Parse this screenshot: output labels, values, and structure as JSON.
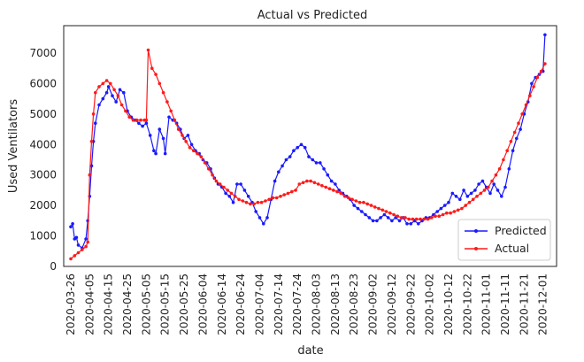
{
  "chart_data": {
    "type": "line",
    "title": "Actual vs Predicted",
    "xlabel": "date",
    "ylabel": "Used Ventilators",
    "ylim": [
      0,
      7900
    ],
    "yticks": [
      0,
      1000,
      2000,
      3000,
      4000,
      5000,
      6000,
      7000
    ],
    "grid": false,
    "legend_position": "lower-right",
    "xticks": [
      "2020-03-26",
      "2020-04-05",
      "2020-04-15",
      "2020-04-25",
      "2020-05-05",
      "2020-05-15",
      "2020-05-25",
      "2020-06-04",
      "2020-06-14",
      "2020-06-24",
      "2020-07-04",
      "2020-07-14",
      "2020-07-24",
      "2020-08-03",
      "2020-08-13",
      "2020-08-23",
      "2020-09-02",
      "2020-09-12",
      "2020-09-22",
      "2020-10-02",
      "2020-10-12",
      "2020-10-22",
      "2020-11-01",
      "2020-11-11",
      "2020-11-21",
      "2020-12-01"
    ],
    "series": [
      {
        "name": "Predicted",
        "color": "#1a1aff",
        "points": [
          [
            "2020-03-26",
            1300
          ],
          [
            "2020-03-27",
            1400
          ],
          [
            "2020-03-28",
            900
          ],
          [
            "2020-03-29",
            950
          ],
          [
            "2020-03-30",
            700
          ],
          [
            "2020-04-01",
            600
          ],
          [
            "2020-04-03",
            900
          ],
          [
            "2020-04-04",
            1500
          ],
          [
            "2020-04-05",
            2300
          ],
          [
            "2020-04-06",
            3300
          ],
          [
            "2020-04-07",
            4100
          ],
          [
            "2020-04-08",
            4700
          ],
          [
            "2020-04-10",
            5300
          ],
          [
            "2020-04-12",
            5500
          ],
          [
            "2020-04-14",
            5700
          ],
          [
            "2020-04-15",
            5900
          ],
          [
            "2020-04-17",
            5600
          ],
          [
            "2020-04-19",
            5400
          ],
          [
            "2020-04-21",
            5800
          ],
          [
            "2020-04-23",
            5700
          ],
          [
            "2020-04-25",
            5100
          ],
          [
            "2020-04-27",
            4900
          ],
          [
            "2020-04-29",
            4800
          ],
          [
            "2020-05-01",
            4700
          ],
          [
            "2020-05-03",
            4600
          ],
          [
            "2020-05-05",
            4700
          ],
          [
            "2020-05-07",
            4300
          ],
          [
            "2020-05-09",
            3800
          ],
          [
            "2020-05-10",
            3700
          ],
          [
            "2020-05-12",
            4500
          ],
          [
            "2020-05-14",
            4200
          ],
          [
            "2020-05-15",
            3700
          ],
          [
            "2020-05-17",
            4900
          ],
          [
            "2020-05-19",
            4800
          ],
          [
            "2020-05-21",
            4700
          ],
          [
            "2020-05-23",
            4500
          ],
          [
            "2020-05-25",
            4200
          ],
          [
            "2020-05-27",
            4300
          ],
          [
            "2020-05-29",
            4000
          ],
          [
            "2020-05-31",
            3800
          ],
          [
            "2020-06-02",
            3700
          ],
          [
            "2020-06-04",
            3500
          ],
          [
            "2020-06-06",
            3400
          ],
          [
            "2020-06-08",
            3200
          ],
          [
            "2020-06-10",
            2900
          ],
          [
            "2020-06-12",
            2700
          ],
          [
            "2020-06-14",
            2600
          ],
          [
            "2020-06-16",
            2400
          ],
          [
            "2020-06-18",
            2300
          ],
          [
            "2020-06-20",
            2100
          ],
          [
            "2020-06-22",
            2700
          ],
          [
            "2020-06-24",
            2700
          ],
          [
            "2020-06-26",
            2500
          ],
          [
            "2020-06-28",
            2300
          ],
          [
            "2020-06-30",
            2100
          ],
          [
            "2020-07-02",
            1800
          ],
          [
            "2020-07-04",
            1600
          ],
          [
            "2020-07-06",
            1400
          ],
          [
            "2020-07-08",
            1600
          ],
          [
            "2020-07-10",
            2200
          ],
          [
            "2020-07-12",
            2800
          ],
          [
            "2020-07-14",
            3100
          ],
          [
            "2020-07-16",
            3300
          ],
          [
            "2020-07-18",
            3500
          ],
          [
            "2020-07-20",
            3600
          ],
          [
            "2020-07-22",
            3800
          ],
          [
            "2020-07-24",
            3900
          ],
          [
            "2020-07-26",
            4000
          ],
          [
            "2020-07-28",
            3900
          ],
          [
            "2020-07-30",
            3600
          ],
          [
            "2020-08-01",
            3500
          ],
          [
            "2020-08-03",
            3400
          ],
          [
            "2020-08-05",
            3400
          ],
          [
            "2020-08-07",
            3200
          ],
          [
            "2020-08-09",
            3000
          ],
          [
            "2020-08-11",
            2800
          ],
          [
            "2020-08-13",
            2700
          ],
          [
            "2020-08-15",
            2500
          ],
          [
            "2020-08-17",
            2400
          ],
          [
            "2020-08-19",
            2300
          ],
          [
            "2020-08-21",
            2200
          ],
          [
            "2020-08-23",
            2000
          ],
          [
            "2020-08-25",
            1900
          ],
          [
            "2020-08-27",
            1800
          ],
          [
            "2020-08-29",
            1700
          ],
          [
            "2020-08-31",
            1600
          ],
          [
            "2020-09-02",
            1500
          ],
          [
            "2020-09-04",
            1500
          ],
          [
            "2020-09-06",
            1600
          ],
          [
            "2020-09-08",
            1700
          ],
          [
            "2020-09-10",
            1600
          ],
          [
            "2020-09-12",
            1500
          ],
          [
            "2020-09-14",
            1600
          ],
          [
            "2020-09-16",
            1500
          ],
          [
            "2020-09-18",
            1600
          ],
          [
            "2020-09-20",
            1400
          ],
          [
            "2020-09-22",
            1400
          ],
          [
            "2020-09-24",
            1500
          ],
          [
            "2020-09-26",
            1400
          ],
          [
            "2020-09-28",
            1500
          ],
          [
            "2020-09-30",
            1600
          ],
          [
            "2020-10-02",
            1600
          ],
          [
            "2020-10-04",
            1700
          ],
          [
            "2020-10-06",
            1800
          ],
          [
            "2020-10-08",
            1900
          ],
          [
            "2020-10-10",
            2000
          ],
          [
            "2020-10-12",
            2100
          ],
          [
            "2020-10-14",
            2400
          ],
          [
            "2020-10-16",
            2300
          ],
          [
            "2020-10-18",
            2200
          ],
          [
            "2020-10-20",
            2500
          ],
          [
            "2020-10-22",
            2300
          ],
          [
            "2020-10-24",
            2400
          ],
          [
            "2020-10-26",
            2500
          ],
          [
            "2020-10-28",
            2700
          ],
          [
            "2020-10-30",
            2800
          ],
          [
            "2020-11-01",
            2600
          ],
          [
            "2020-11-03",
            2400
          ],
          [
            "2020-11-05",
            2700
          ],
          [
            "2020-11-07",
            2500
          ],
          [
            "2020-11-09",
            2300
          ],
          [
            "2020-11-11",
            2600
          ],
          [
            "2020-11-13",
            3200
          ],
          [
            "2020-11-15",
            3800
          ],
          [
            "2020-11-17",
            4200
          ],
          [
            "2020-11-19",
            4500
          ],
          [
            "2020-11-21",
            5000
          ],
          [
            "2020-11-23",
            5400
          ],
          [
            "2020-11-25",
            6000
          ],
          [
            "2020-11-27",
            6200
          ],
          [
            "2020-11-29",
            6300
          ],
          [
            "2020-12-01",
            6400
          ],
          [
            "2020-12-02",
            7600
          ]
        ]
      },
      {
        "name": "Actual",
        "color": "#ff1a1a",
        "points": [
          [
            "2020-03-26",
            250
          ],
          [
            "2020-03-28",
            350
          ],
          [
            "2020-03-30",
            450
          ],
          [
            "2020-04-01",
            550
          ],
          [
            "2020-04-03",
            650
          ],
          [
            "2020-04-04",
            800
          ],
          [
            "2020-04-05",
            3000
          ],
          [
            "2020-04-06",
            4100
          ],
          [
            "2020-04-07",
            5000
          ],
          [
            "2020-04-08",
            5700
          ],
          [
            "2020-04-10",
            5900
          ],
          [
            "2020-04-12",
            6000
          ],
          [
            "2020-04-14",
            6100
          ],
          [
            "2020-04-16",
            6000
          ],
          [
            "2020-04-18",
            5800
          ],
          [
            "2020-04-20",
            5600
          ],
          [
            "2020-04-22",
            5300
          ],
          [
            "2020-04-24",
            5100
          ],
          [
            "2020-04-26",
            4900
          ],
          [
            "2020-04-28",
            4800
          ],
          [
            "2020-04-30",
            4800
          ],
          [
            "2020-05-02",
            4800
          ],
          [
            "2020-05-04",
            4800
          ],
          [
            "2020-05-05",
            4800
          ],
          [
            "2020-05-06",
            7100
          ],
          [
            "2020-05-08",
            6500
          ],
          [
            "2020-05-10",
            6300
          ],
          [
            "2020-05-12",
            6000
          ],
          [
            "2020-05-14",
            5700
          ],
          [
            "2020-05-16",
            5400
          ],
          [
            "2020-05-18",
            5100
          ],
          [
            "2020-05-20",
            4800
          ],
          [
            "2020-05-22",
            4500
          ],
          [
            "2020-05-24",
            4300
          ],
          [
            "2020-05-26",
            4100
          ],
          [
            "2020-05-28",
            3900
          ],
          [
            "2020-05-30",
            3800
          ],
          [
            "2020-06-01",
            3700
          ],
          [
            "2020-06-03",
            3600
          ],
          [
            "2020-06-05",
            3400
          ],
          [
            "2020-06-07",
            3200
          ],
          [
            "2020-06-09",
            3000
          ],
          [
            "2020-06-11",
            2800
          ],
          [
            "2020-06-13",
            2700
          ],
          [
            "2020-06-15",
            2600
          ],
          [
            "2020-06-17",
            2500
          ],
          [
            "2020-06-19",
            2400
          ],
          [
            "2020-06-21",
            2300
          ],
          [
            "2020-06-23",
            2200
          ],
          [
            "2020-06-25",
            2150
          ],
          [
            "2020-06-27",
            2100
          ],
          [
            "2020-06-29",
            2050
          ],
          [
            "2020-07-01",
            2050
          ],
          [
            "2020-07-03",
            2100
          ],
          [
            "2020-07-05",
            2100
          ],
          [
            "2020-07-07",
            2150
          ],
          [
            "2020-07-09",
            2200
          ],
          [
            "2020-07-11",
            2250
          ],
          [
            "2020-07-13",
            2250
          ],
          [
            "2020-07-15",
            2300
          ],
          [
            "2020-07-17",
            2350
          ],
          [
            "2020-07-19",
            2400
          ],
          [
            "2020-07-21",
            2450
          ],
          [
            "2020-07-23",
            2500
          ],
          [
            "2020-07-25",
            2700
          ],
          [
            "2020-07-27",
            2750
          ],
          [
            "2020-07-29",
            2800
          ],
          [
            "2020-07-31",
            2800
          ],
          [
            "2020-08-02",
            2750
          ],
          [
            "2020-08-04",
            2700
          ],
          [
            "2020-08-06",
            2650
          ],
          [
            "2020-08-08",
            2600
          ],
          [
            "2020-08-10",
            2550
          ],
          [
            "2020-08-12",
            2500
          ],
          [
            "2020-08-14",
            2450
          ],
          [
            "2020-08-16",
            2400
          ],
          [
            "2020-08-18",
            2300
          ],
          [
            "2020-08-20",
            2250
          ],
          [
            "2020-08-22",
            2200
          ],
          [
            "2020-08-24",
            2150
          ],
          [
            "2020-08-26",
            2100
          ],
          [
            "2020-08-28",
            2100
          ],
          [
            "2020-08-30",
            2050
          ],
          [
            "2020-09-01",
            2000
          ],
          [
            "2020-09-03",
            1950
          ],
          [
            "2020-09-05",
            1900
          ],
          [
            "2020-09-07",
            1850
          ],
          [
            "2020-09-09",
            1800
          ],
          [
            "2020-09-11",
            1750
          ],
          [
            "2020-09-13",
            1700
          ],
          [
            "2020-09-15",
            1650
          ],
          [
            "2020-09-17",
            1600
          ],
          [
            "2020-09-19",
            1600
          ],
          [
            "2020-09-21",
            1550
          ],
          [
            "2020-09-23",
            1550
          ],
          [
            "2020-09-25",
            1550
          ],
          [
            "2020-09-27",
            1550
          ],
          [
            "2020-09-29",
            1550
          ],
          [
            "2020-10-01",
            1550
          ],
          [
            "2020-10-03",
            1600
          ],
          [
            "2020-10-05",
            1650
          ],
          [
            "2020-10-07",
            1650
          ],
          [
            "2020-10-09",
            1700
          ],
          [
            "2020-10-11",
            1750
          ],
          [
            "2020-10-13",
            1750
          ],
          [
            "2020-10-15",
            1800
          ],
          [
            "2020-10-17",
            1850
          ],
          [
            "2020-10-19",
            1900
          ],
          [
            "2020-10-21",
            2000
          ],
          [
            "2020-10-23",
            2100
          ],
          [
            "2020-10-25",
            2200
          ],
          [
            "2020-10-27",
            2300
          ],
          [
            "2020-10-29",
            2400
          ],
          [
            "2020-10-31",
            2500
          ],
          [
            "2020-11-02",
            2600
          ],
          [
            "2020-11-04",
            2800
          ],
          [
            "2020-11-06",
            3000
          ],
          [
            "2020-11-08",
            3200
          ],
          [
            "2020-11-10",
            3500
          ],
          [
            "2020-11-12",
            3800
          ],
          [
            "2020-11-14",
            4100
          ],
          [
            "2020-11-16",
            4400
          ],
          [
            "2020-11-18",
            4700
          ],
          [
            "2020-11-20",
            5000
          ],
          [
            "2020-11-22",
            5300
          ],
          [
            "2020-11-24",
            5600
          ],
          [
            "2020-11-26",
            5900
          ],
          [
            "2020-11-28",
            6200
          ],
          [
            "2020-11-30",
            6400
          ],
          [
            "2020-12-02",
            6650
          ]
        ]
      }
    ]
  }
}
